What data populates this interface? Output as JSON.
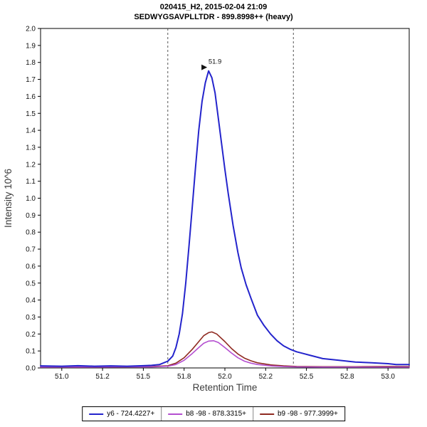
{
  "chart_data": {
    "type": "line",
    "title": "020415_H2, 2015-02-04 21:09",
    "subtitle": "SEDWYGSAVPLLTDR - 899.8998++ (heavy)",
    "xlabel": "Retention Time",
    "ylabel": "Intensity 10^6",
    "xlim": [
      50.87,
      53.13
    ],
    "ylim": [
      0,
      2.0
    ],
    "grid": false,
    "legend_position": "bottom",
    "x_ticks": [
      {
        "v": 51.0,
        "label": "51.0"
      },
      {
        "v": 51.25,
        "label": "51.2"
      },
      {
        "v": 51.5,
        "label": "51.5"
      },
      {
        "v": 51.75,
        "label": "51.8"
      },
      {
        "v": 52.0,
        "label": "52.0"
      },
      {
        "v": 52.25,
        "label": "52.2"
      },
      {
        "v": 52.5,
        "label": "52.5"
      },
      {
        "v": 52.75,
        "label": "52.8"
      },
      {
        "v": 53.0,
        "label": "53.0"
      }
    ],
    "y_ticks": [
      {
        "v": 0.0,
        "label": "0.0"
      },
      {
        "v": 0.1,
        "label": "0.1"
      },
      {
        "v": 0.2,
        "label": "0.2"
      },
      {
        "v": 0.3,
        "label": "0.3"
      },
      {
        "v": 0.4,
        "label": "0.4"
      },
      {
        "v": 0.5,
        "label": "0.5"
      },
      {
        "v": 0.6,
        "label": "0.6"
      },
      {
        "v": 0.7,
        "label": "0.7"
      },
      {
        "v": 0.8,
        "label": "0.8"
      },
      {
        "v": 0.9,
        "label": "0.9"
      },
      {
        "v": 1.0,
        "label": "1.0"
      },
      {
        "v": 1.1,
        "label": "1.1"
      },
      {
        "v": 1.2,
        "label": "1.2"
      },
      {
        "v": 1.3,
        "label": "1.3"
      },
      {
        "v": 1.4,
        "label": "1.4"
      },
      {
        "v": 1.5,
        "label": "1.5"
      },
      {
        "v": 1.6,
        "label": "1.6"
      },
      {
        "v": 1.7,
        "label": "1.7"
      },
      {
        "v": 1.8,
        "label": "1.8"
      },
      {
        "v": 1.9,
        "label": "1.9"
      },
      {
        "v": 2.0,
        "label": "2.0"
      }
    ],
    "integration_boundaries": [
      51.65,
      52.42
    ],
    "peak_annotation": {
      "x": 51.9,
      "y": 1.75,
      "label": "51.9",
      "color": "#111111"
    },
    "series": [
      {
        "id": "y6",
        "name": "y6 - 724.4227+",
        "color": "#2424cc",
        "width": 2,
        "points": [
          [
            50.87,
            0.012
          ],
          [
            51.0,
            0.01
          ],
          [
            51.1,
            0.013
          ],
          [
            51.2,
            0.01
          ],
          [
            51.3,
            0.012
          ],
          [
            51.4,
            0.01
          ],
          [
            51.5,
            0.013
          ],
          [
            51.55,
            0.015
          ],
          [
            51.6,
            0.02
          ],
          [
            51.65,
            0.04
          ],
          [
            51.68,
            0.07
          ],
          [
            51.7,
            0.12
          ],
          [
            51.72,
            0.2
          ],
          [
            51.74,
            0.32
          ],
          [
            51.76,
            0.5
          ],
          [
            51.78,
            0.72
          ],
          [
            51.8,
            0.95
          ],
          [
            51.82,
            1.18
          ],
          [
            51.84,
            1.4
          ],
          [
            51.86,
            1.57
          ],
          [
            51.88,
            1.68
          ],
          [
            51.9,
            1.75
          ],
          [
            51.92,
            1.71
          ],
          [
            51.94,
            1.62
          ],
          [
            51.96,
            1.47
          ],
          [
            51.98,
            1.32
          ],
          [
            52.0,
            1.17
          ],
          [
            52.02,
            1.03
          ],
          [
            52.05,
            0.84
          ],
          [
            52.08,
            0.68
          ],
          [
            52.1,
            0.59
          ],
          [
            52.13,
            0.49
          ],
          [
            52.16,
            0.41
          ],
          [
            52.2,
            0.31
          ],
          [
            52.24,
            0.25
          ],
          [
            52.28,
            0.2
          ],
          [
            52.32,
            0.16
          ],
          [
            52.36,
            0.13
          ],
          [
            52.4,
            0.11
          ],
          [
            52.44,
            0.095
          ],
          [
            52.48,
            0.085
          ],
          [
            52.52,
            0.075
          ],
          [
            52.56,
            0.065
          ],
          [
            52.6,
            0.055
          ],
          [
            52.7,
            0.045
          ],
          [
            52.8,
            0.035
          ],
          [
            52.9,
            0.03
          ],
          [
            53.0,
            0.025
          ],
          [
            53.05,
            0.02
          ],
          [
            53.13,
            0.02
          ]
        ]
      },
      {
        "id": "b8",
        "name": "b8 -98 - 878.3315+",
        "color": "#b44fd0",
        "width": 1.6,
        "points": [
          [
            50.87,
            0.005
          ],
          [
            51.2,
            0.005
          ],
          [
            51.4,
            0.006
          ],
          [
            51.55,
            0.006
          ],
          [
            51.65,
            0.01
          ],
          [
            51.7,
            0.02
          ],
          [
            51.75,
            0.045
          ],
          [
            51.8,
            0.085
          ],
          [
            51.84,
            0.12
          ],
          [
            51.87,
            0.145
          ],
          [
            51.9,
            0.158
          ],
          [
            51.93,
            0.16
          ],
          [
            51.96,
            0.15
          ],
          [
            52.0,
            0.12
          ],
          [
            52.04,
            0.088
          ],
          [
            52.08,
            0.06
          ],
          [
            52.12,
            0.04
          ],
          [
            52.16,
            0.028
          ],
          [
            52.2,
            0.02
          ],
          [
            52.28,
            0.012
          ],
          [
            52.36,
            0.008
          ],
          [
            52.44,
            0.006
          ],
          [
            52.6,
            0.005
          ],
          [
            52.8,
            0.005
          ],
          [
            53.0,
            0.005
          ],
          [
            53.13,
            0.005
          ]
        ]
      },
      {
        "id": "b9",
        "name": "b9 -98 - 977.3999+",
        "color": "#8f2a21",
        "width": 1.6,
        "points": [
          [
            50.87,
            0.006
          ],
          [
            51.2,
            0.006
          ],
          [
            51.4,
            0.007
          ],
          [
            51.55,
            0.008
          ],
          [
            51.65,
            0.013
          ],
          [
            51.7,
            0.028
          ],
          [
            51.75,
            0.06
          ],
          [
            51.8,
            0.11
          ],
          [
            51.84,
            0.155
          ],
          [
            51.87,
            0.19
          ],
          [
            51.9,
            0.208
          ],
          [
            51.92,
            0.212
          ],
          [
            51.95,
            0.2
          ],
          [
            52.0,
            0.155
          ],
          [
            52.04,
            0.115
          ],
          [
            52.08,
            0.082
          ],
          [
            52.12,
            0.058
          ],
          [
            52.16,
            0.042
          ],
          [
            52.2,
            0.03
          ],
          [
            52.28,
            0.018
          ],
          [
            52.36,
            0.012
          ],
          [
            52.44,
            0.009
          ],
          [
            52.6,
            0.007
          ],
          [
            52.8,
            0.007
          ],
          [
            53.0,
            0.009
          ],
          [
            53.13,
            0.008
          ]
        ]
      }
    ],
    "style": {
      "frame_color": "#000000",
      "boundary_color": "#555555",
      "tick_label_color": "#111111",
      "axis_label_color": "#3c3c3c"
    }
  }
}
